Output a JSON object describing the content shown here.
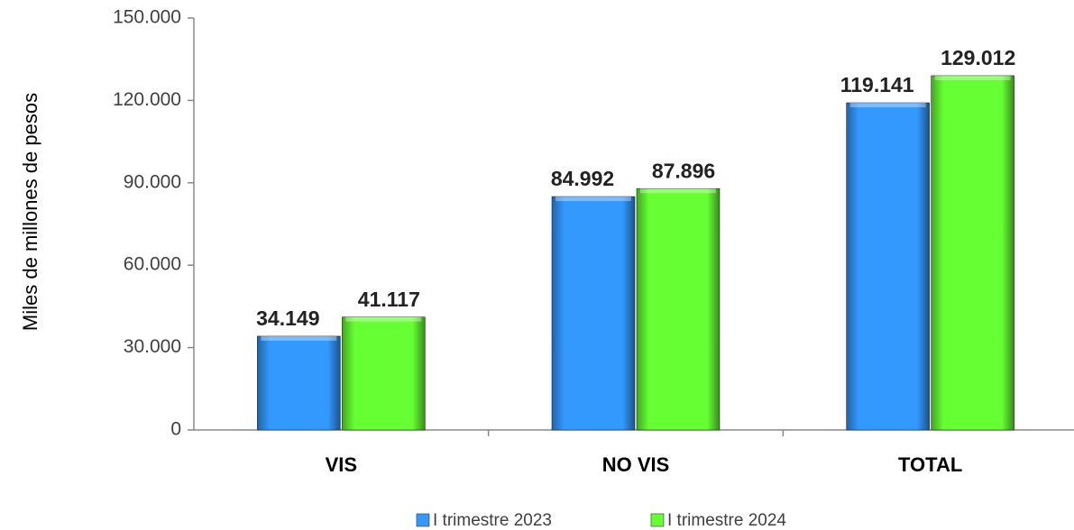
{
  "chart_data": {
    "type": "bar",
    "y_label": "Miles de  millones de pesos",
    "categories": [
      "VIS",
      "NO VIS",
      "TOTAL"
    ],
    "series": [
      {
        "name": "I trimestre 2023",
        "color": "#3399ff",
        "values": [
          34149,
          84992,
          119141
        ],
        "value_labels": [
          "34.149",
          "84.992",
          "119.141"
        ]
      },
      {
        "name": "I trimestre 2024",
        "color": "#66ff33",
        "values": [
          41117,
          87896,
          129012
        ],
        "value_labels": [
          "41.117",
          "87.896",
          "129.012"
        ]
      }
    ],
    "ylim": [
      0,
      150000
    ],
    "yticks": [
      0,
      {
        "value": 30000,
        "label": "30.000"
      },
      {
        "value": 60000,
        "label": "60.000"
      },
      {
        "value": 90000,
        "label": "90.000"
      },
      {
        "value": 120000,
        "label": "120.000"
      },
      {
        "value": 150000,
        "label": "150.000"
      }
    ],
    "legend": "bottom"
  }
}
